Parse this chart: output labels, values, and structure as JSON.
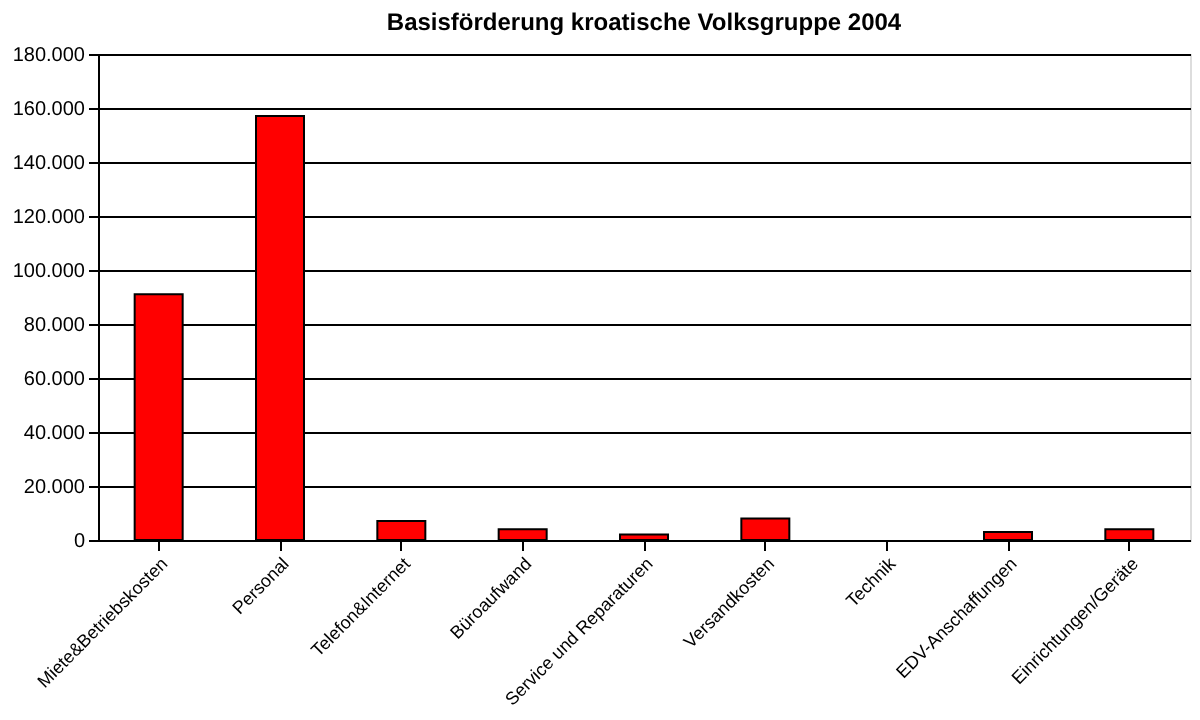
{
  "chart_data": {
    "type": "bar",
    "title": "Basisförderung kroatische Volksgruppe 2004",
    "categories": [
      "Miete&Betriebskosten",
      "Personal",
      "Telefon&Internet",
      "Büroaufwand",
      "Service und Reparaturen",
      "Versandkosten",
      "Technik",
      "EDV-Anschaffungen",
      "Einrichtungen/Geräte"
    ],
    "values": [
      91000,
      157000,
      7000,
      4000,
      2000,
      8000,
      null,
      3000,
      4000
    ],
    "color": "#ff0000",
    "ylim": [
      0,
      180000
    ],
    "yticks": [
      0,
      {
        "value": 20000,
        "label": "20.000"
      },
      {
        "value": 40000,
        "label": "40.000"
      },
      {
        "value": 60000,
        "label": "60.000"
      },
      {
        "value": 80000,
        "label": "80.000"
      },
      {
        "value": 100000,
        "label": "100.000"
      },
      {
        "value": 120000,
        "label": "120.000"
      },
      {
        "value": 140000,
        "label": "140.000"
      },
      {
        "value": 160000,
        "label": "160.000"
      },
      {
        "value": 180000,
        "label": "180.000"
      }
    ],
    "grid": "y"
  }
}
